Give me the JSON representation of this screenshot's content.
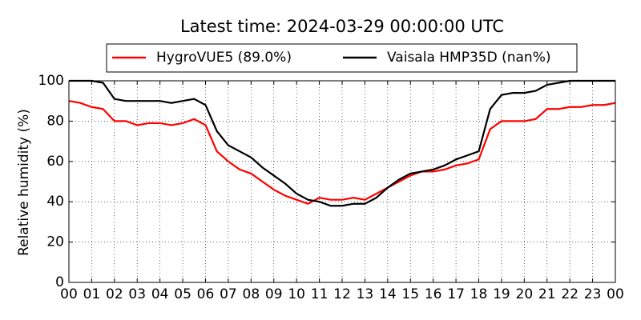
{
  "chart_data": {
    "type": "line",
    "title": "Latest time: 2024-03-29 00:00:00 UTC",
    "ylabel": "Relative humidity (%)",
    "x": [
      0,
      0.5,
      1,
      1.5,
      2,
      2.5,
      3,
      3.5,
      4,
      4.5,
      5,
      5.5,
      6,
      6.5,
      7,
      7.5,
      8,
      8.5,
      9,
      9.5,
      10,
      10.5,
      11,
      11.5,
      12,
      12.5,
      13,
      13.5,
      14,
      14.5,
      15,
      15.5,
      16,
      16.5,
      17,
      17.5,
      18,
      18.5,
      19,
      19.5,
      20,
      20.5,
      21,
      21.5,
      22,
      22.5,
      23,
      23.5,
      24
    ],
    "series": [
      {
        "name": "HygroVUE5 (89.0%)",
        "color": "#ff0000",
        "values": [
          90,
          89,
          87,
          86,
          80,
          80,
          78,
          79,
          79,
          78,
          79,
          81,
          78,
          65,
          60,
          56,
          54,
          50,
          46,
          43,
          41,
          39,
          42,
          41,
          41,
          42,
          41,
          44,
          47,
          50,
          53,
          55,
          55,
          56,
          58,
          59,
          61,
          76,
          80,
          80,
          80,
          81,
          86,
          86,
          87,
          87,
          88,
          88,
          89
        ]
      },
      {
        "name": "Vaisala HMP35D (nan%)",
        "color": "#000000",
        "values": [
          100,
          100,
          100,
          99,
          91,
          90,
          90,
          90,
          90,
          89,
          90,
          91,
          88,
          75,
          68,
          65,
          62,
          57,
          53,
          49,
          44,
          41,
          40,
          38,
          38,
          39,
          39,
          42,
          47,
          51,
          54,
          55,
          56,
          58,
          61,
          63,
          65,
          86,
          93,
          94,
          94,
          95,
          98,
          99,
          100,
          100,
          100,
          100,
          100
        ]
      }
    ],
    "xlim": [
      0,
      24
    ],
    "xticks": [
      {
        "value": 0,
        "label": "00"
      },
      {
        "value": 1,
        "label": "01"
      },
      {
        "value": 2,
        "label": "02"
      },
      {
        "value": 3,
        "label": "03"
      },
      {
        "value": 4,
        "label": "04"
      },
      {
        "value": 5,
        "label": "05"
      },
      {
        "value": 6,
        "label": "06"
      },
      {
        "value": 7,
        "label": "07"
      },
      {
        "value": 8,
        "label": "08"
      },
      {
        "value": 9,
        "label": "09"
      },
      {
        "value": 10,
        "label": "10"
      },
      {
        "value": 11,
        "label": "11"
      },
      {
        "value": 12,
        "label": "12"
      },
      {
        "value": 13,
        "label": "13"
      },
      {
        "value": 14,
        "label": "14"
      },
      {
        "value": 15,
        "label": "15"
      },
      {
        "value": 16,
        "label": "16"
      },
      {
        "value": 17,
        "label": "17"
      },
      {
        "value": 18,
        "label": "18"
      },
      {
        "value": 19,
        "label": "19"
      },
      {
        "value": 20,
        "label": "20"
      },
      {
        "value": 21,
        "label": "21"
      },
      {
        "value": 22,
        "label": "22"
      },
      {
        "value": 23,
        "label": "23"
      },
      {
        "value": 24,
        "label": "00"
      }
    ],
    "ylim": [
      0,
      100
    ],
    "yticks": [
      0,
      20,
      40,
      60,
      80,
      100
    ],
    "grid": true,
    "legend": "top"
  }
}
